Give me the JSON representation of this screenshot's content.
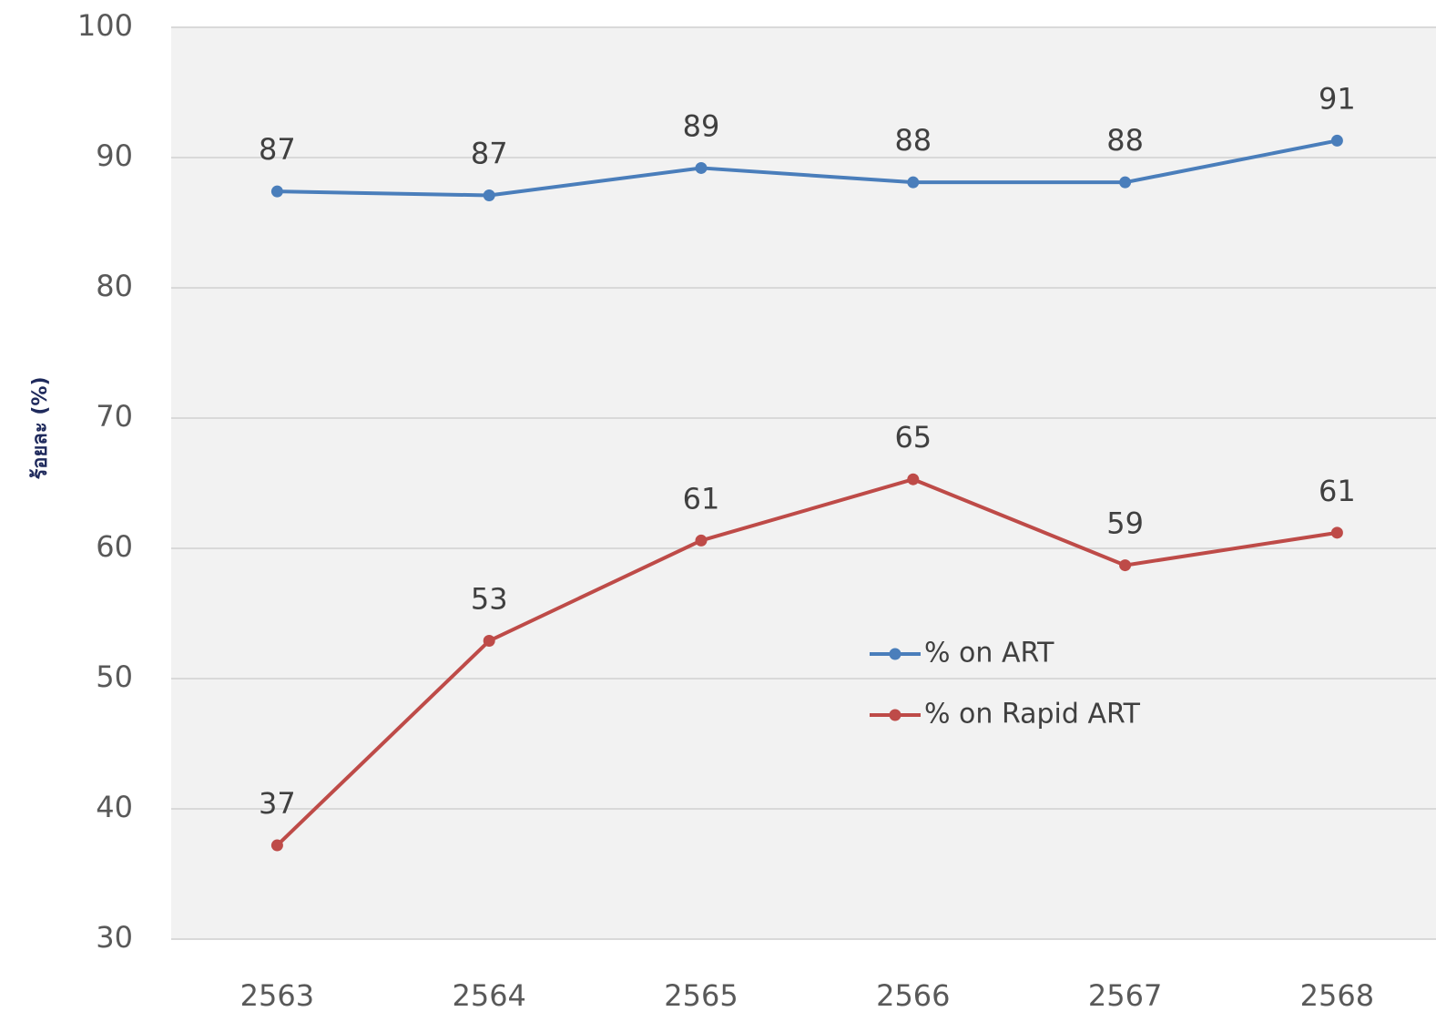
{
  "chart_data": {
    "type": "line",
    "y_axis_label": "ร้อยละ (%)",
    "categories": [
      "2563",
      "2564",
      "2565",
      "2566",
      "2567",
      "2568"
    ],
    "series": [
      {
        "name": "% on ART",
        "color": "#4a7ebb",
        "values": [
          87.4,
          87.1,
          89.2,
          88.1,
          88.1,
          91.3
        ],
        "value_labels": [
          "87",
          "87",
          "89",
          "88",
          "88",
          "91"
        ]
      },
      {
        "name": "% on Rapid ART",
        "color": "#be4b48",
        "values": [
          37.2,
          52.9,
          60.6,
          65.3,
          58.7,
          61.2
        ],
        "value_labels": [
          "37",
          "53",
          "61",
          "65",
          "59",
          "61"
        ]
      }
    ],
    "ylim": [
      30,
      100
    ],
    "yticks": [
      30,
      40,
      50,
      60,
      70,
      80,
      90,
      100
    ],
    "grid": true,
    "legend": "center"
  }
}
